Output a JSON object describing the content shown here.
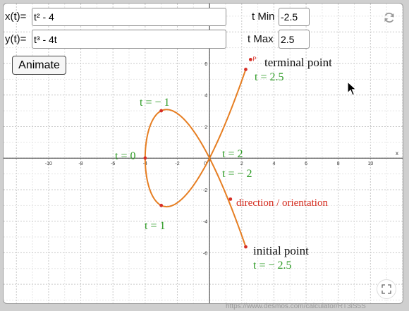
{
  "controls": {
    "x_label": "x(t)=",
    "x_value": "t² - 4",
    "y_label": "y(t)=",
    "y_value": "t³ - 4t",
    "tmin_label": "t Min",
    "tmin_value": "-2.5",
    "tmax_label": "t Max",
    "tmax_value": "2.5",
    "animate_label": "Animate"
  },
  "icons": {
    "reset": "reset-icon",
    "fullscreen": "fullscreen-icon",
    "cursor": "mouse-cursor-icon"
  },
  "annotations": {
    "terminal": "terminal point",
    "t_end": "t = 2.5",
    "t_neg1": "t = − 1",
    "t_zero": "t = 0",
    "t_one": "t = 1",
    "t_two": "t = 2",
    "t_neg2": "t = − 2",
    "direction": "direction / orientation",
    "initial": "initial point",
    "t_start": "t = − 2.5"
  },
  "footer": {
    "credit": "https://www.desmos.com/calculator/RT3iS5S"
  },
  "colors": {
    "curve": "#e67e22",
    "annotation_green": "#2e9b25",
    "annotation_red": "#d52b1e",
    "point": "#d62f26"
  },
  "chart_data": {
    "type": "line",
    "x_axis_label": "x",
    "x_ticks": [
      -10,
      -8,
      -6,
      -4,
      -2,
      0,
      2,
      4,
      6,
      8,
      10
    ],
    "y_ticks": [
      -6,
      -4,
      -2,
      2,
      4,
      6
    ],
    "xlim": [
      -12.8,
      12
    ],
    "ylim": [
      -9.2,
      9.8
    ],
    "grid": true,
    "series": [
      {
        "equation_x": "t^2 - 4",
        "equation_y": "t^3 - 4t",
        "t_range": [
          -2.5,
          2.5
        ],
        "color": "#e67e22"
      }
    ],
    "marked_points": [
      {
        "t": -2.5,
        "x": 2.25,
        "y": -5.625
      },
      {
        "t": -1,
        "x": -3,
        "y": 3
      },
      {
        "t": 0,
        "x": -4,
        "y": 0
      },
      {
        "t": 1,
        "x": -3,
        "y": -3
      },
      {
        "t": 2.5,
        "x": 2.25,
        "y": 5.625
      },
      {
        "t": 0,
        "x": 1.3,
        "y": -2.6
      },
      {
        "t": 2.5,
        "x": 2.55,
        "y": 6.25
      }
    ],
    "point_label": "P"
  }
}
